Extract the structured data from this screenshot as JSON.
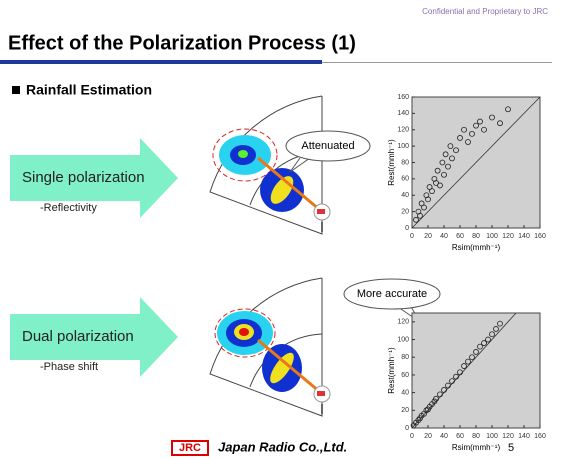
{
  "header": {
    "confidential": "Confidential and Proprietary to JRC",
    "title": "Effect of the Polarization Process (1)"
  },
  "section": "Rainfall Estimation",
  "rows": [
    {
      "label": "Single polarization",
      "sublabel": "-Reflectivity",
      "callout": "Attenuated"
    },
    {
      "label": "Dual polarization",
      "sublabel": "-Phase shift",
      "callout": "More accurate"
    }
  ],
  "footer": {
    "logo": "JRC",
    "company": "Japan Radio Co.,Ltd.",
    "page": "5"
  },
  "chart_data": [
    {
      "type": "scatter",
      "xlabel": "Rsim(mmh⁻¹)",
      "ylabel": "Rest(mmh⁻¹)",
      "color": "#222",
      "xlim": [
        0,
        160
      ],
      "ylim": [
        0,
        160
      ],
      "xticks": [
        0,
        20,
        40,
        60,
        80,
        100,
        120,
        140,
        160
      ],
      "yticks": [
        0,
        20,
        40,
        60,
        80,
        100,
        120,
        140,
        160
      ],
      "x": [
        5,
        8,
        10,
        12,
        15,
        18,
        20,
        22,
        25,
        28,
        30,
        32,
        35,
        38,
        40,
        42,
        45,
        48,
        50,
        55,
        60,
        65,
        70,
        75,
        80,
        85,
        90,
        100,
        110,
        120
      ],
      "y": [
        10,
        20,
        15,
        30,
        25,
        40,
        35,
        50,
        45,
        60,
        55,
        70,
        52,
        80,
        65,
        90,
        75,
        100,
        85,
        95,
        110,
        120,
        105,
        115,
        125,
        130,
        120,
        135,
        128,
        145
      ]
    },
    {
      "type": "scatter",
      "xlabel": "Rsim(mmh⁻¹)",
      "ylabel": "Rest(mmh⁻¹)",
      "color": "#222",
      "xlim": [
        0,
        160
      ],
      "ylim": [
        0,
        130
      ],
      "xticks": [
        0,
        20,
        40,
        60,
        80,
        100,
        120,
        140,
        160
      ],
      "yticks": [
        0,
        20,
        40,
        60,
        80,
        100,
        120
      ],
      "x": [
        2,
        5,
        8,
        10,
        12,
        15,
        18,
        20,
        22,
        25,
        28,
        30,
        35,
        40,
        45,
        50,
        55,
        60,
        65,
        70,
        75,
        80,
        85,
        90,
        95,
        100,
        105,
        110
      ],
      "y": [
        3,
        6,
        9,
        11,
        14,
        16,
        20,
        21,
        24,
        27,
        30,
        33,
        38,
        43,
        48,
        53,
        58,
        63,
        70,
        75,
        80,
        86,
        92,
        96,
        100,
        106,
        112,
        118
      ]
    }
  ]
}
